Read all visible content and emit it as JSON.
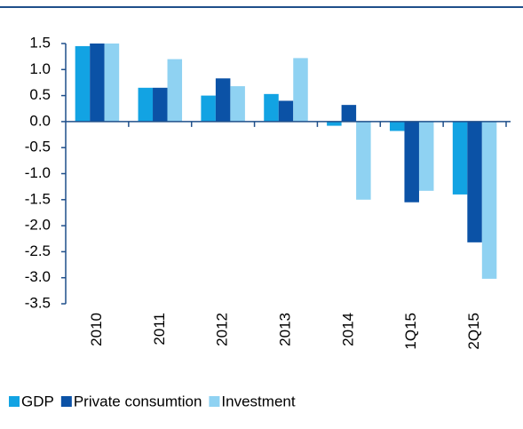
{
  "chart_data": {
    "type": "bar",
    "categories": [
      "2010",
      "2011",
      "2012",
      "2013",
      "2014",
      "1Q15",
      "2Q15"
    ],
    "series": [
      {
        "name": "GDP",
        "color": "#12a3e3",
        "values": [
          1.45,
          0.65,
          0.5,
          0.53,
          -0.08,
          -0.18,
          -1.4
        ]
      },
      {
        "name": "Private consumtion",
        "color": "#0b52a6",
        "values": [
          1.5,
          0.65,
          0.83,
          0.4,
          0.32,
          -1.55,
          -2.32
        ]
      },
      {
        "name": "Investment",
        "color": "#8fd2f2",
        "values": [
          1.5,
          1.2,
          0.68,
          1.22,
          -1.5,
          -1.33,
          -3.02
        ]
      }
    ],
    "ylim": [
      -3.5,
      1.5
    ],
    "yticks": [
      1.5,
      {
        "value": 1.0,
        "label": "1.0"
      },
      0.5,
      {
        "value": 0.0,
        "label": "0.0"
      },
      -0.5,
      {
        "value": -1.0,
        "label": "-1.0"
      },
      -1.5,
      {
        "value": -2.0,
        "label": "-2.0"
      },
      -2.5,
      {
        "value": -3.0,
        "label": "-3.0"
      },
      -3.5
    ],
    "legend": "bottom"
  }
}
